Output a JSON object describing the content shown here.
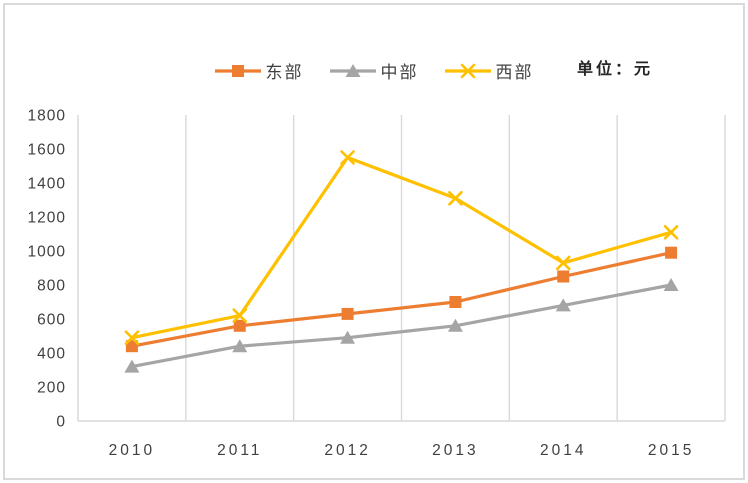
{
  "window": {
    "background": "#ffffff",
    "frame_border_color": "#d9d9d9"
  },
  "header": {
    "unit_label": "单位：元"
  },
  "chart_data": {
    "type": "line",
    "title": "",
    "xlabel": "",
    "ylabel": "",
    "categories": [
      "2010",
      "2011",
      "2012",
      "2013",
      "2014",
      "2015"
    ],
    "series": [
      {
        "name": "东部",
        "color": "#ED7D31",
        "marker": "square",
        "values": [
          440,
          560,
          630,
          700,
          850,
          990
        ]
      },
      {
        "name": "中部",
        "color": "#A5A5A5",
        "marker": "triangle",
        "values": [
          320,
          440,
          490,
          560,
          680,
          800
        ]
      },
      {
        "name": "西部",
        "color": "#FFC000",
        "marker": "x",
        "values": [
          490,
          620,
          1550,
          1310,
          930,
          1110
        ]
      }
    ],
    "ylim": [
      0,
      1800
    ],
    "ytick_step": 200,
    "ytick_labels": [
      "0",
      "200",
      "400",
      "600",
      "800",
      "1000",
      "1200",
      "1400",
      "1600",
      "1800"
    ],
    "grid": "vertical-only",
    "grid_color": "#d9d9d9",
    "axis_line_color": "#d9d9d9",
    "axis_text_color": "#404040",
    "legend_position": "top-center"
  }
}
